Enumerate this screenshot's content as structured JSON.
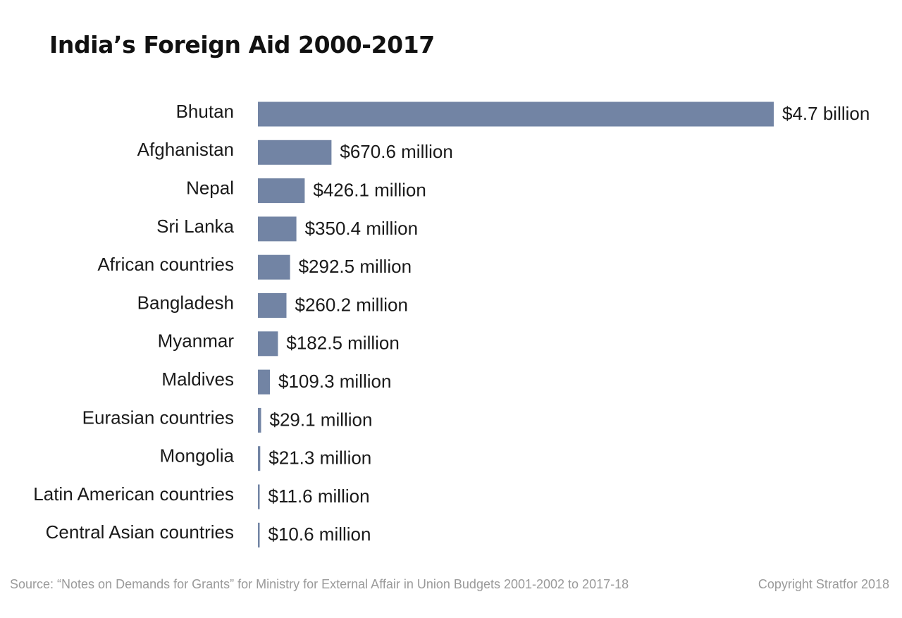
{
  "chart_data": {
    "type": "bar",
    "orientation": "horizontal",
    "title": "India’s Foreign Aid 2000-2017",
    "unit": "USD million",
    "categories": [
      "Bhutan",
      "Afghanistan",
      "Nepal",
      "Sri Lanka",
      "African countries",
      "Bangladesh",
      "Myanmar",
      "Maldives",
      "Eurasian countries",
      "Mongolia",
      "Latin American countries",
      "Central Asian countries"
    ],
    "values": [
      4700,
      670.6,
      426.1,
      350.4,
      292.5,
      260.2,
      182.5,
      109.3,
      29.1,
      21.3,
      11.6,
      10.6
    ],
    "data_labels": [
      "$4.7 billion",
      "$670.6 million",
      "$426.1 million",
      "$350.4 million",
      "$292.5 million",
      "$260.2 million",
      "$182.5 million",
      "$109.3 million",
      "$29.1 million",
      "$21.3 million",
      "$11.6 million",
      "$10.6 million"
    ],
    "xlim": [
      0,
      4700
    ],
    "grid": false,
    "bar_color": "#7284a4"
  },
  "footer": {
    "source": "Source: “Notes on Demands for Grants” for Ministry for External Affair in Union Budgets 2001-2002 to 2017-18",
    "copyright": "Copyright Stratfor 2018"
  }
}
